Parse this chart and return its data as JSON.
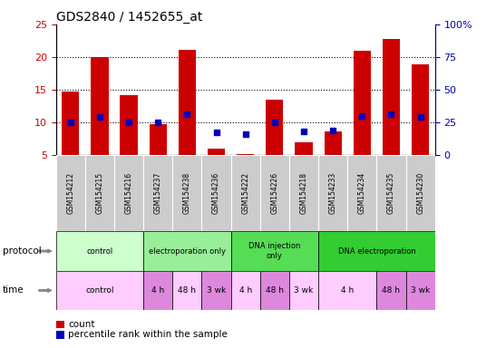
{
  "title": "GDS2840 / 1452655_at",
  "samples": [
    "GSM154212",
    "GSM154215",
    "GSM154216",
    "GSM154237",
    "GSM154238",
    "GSM154236",
    "GSM154222",
    "GSM154226",
    "GSM154218",
    "GSM154233",
    "GSM154234",
    "GSM154235",
    "GSM154230"
  ],
  "count": [
    14.7,
    20.0,
    14.1,
    9.7,
    21.1,
    6.0,
    5.1,
    13.5,
    6.9,
    8.6,
    21.0,
    22.8,
    18.9
  ],
  "percentile_pct": [
    25,
    29,
    25,
    25,
    31,
    17,
    16,
    25,
    18,
    19,
    30,
    31,
    29
  ],
  "ylim_left": [
    5,
    25
  ],
  "ylim_right": [
    0,
    100
  ],
  "y_ticks_left": [
    5,
    10,
    15,
    20,
    25
  ],
  "y_ticks_right": [
    0,
    25,
    50,
    75,
    100
  ],
  "bar_color": "#cc0000",
  "dot_color": "#0000bb",
  "title_fontsize": 10,
  "tick_color_left": "#cc0000",
  "tick_color_right": "#0000aa",
  "sample_bg": "#cccccc",
  "proto_groups": [
    {
      "label": "control",
      "start": 0,
      "end": 3,
      "color": "#ccffcc"
    },
    {
      "label": "electroporation only",
      "start": 3,
      "end": 6,
      "color": "#99ee99"
    },
    {
      "label": "DNA injection\nonly",
      "start": 6,
      "end": 9,
      "color": "#55dd55"
    },
    {
      "label": "DNA electroporation",
      "start": 9,
      "end": 13,
      "color": "#33cc33"
    }
  ],
  "time_groups": [
    {
      "label": "control",
      "start": 0,
      "end": 3,
      "color": "#ffccff"
    },
    {
      "label": "4 h",
      "start": 3,
      "end": 4,
      "color": "#dd88dd"
    },
    {
      "label": "48 h",
      "start": 4,
      "end": 5,
      "color": "#ffccff"
    },
    {
      "label": "3 wk",
      "start": 5,
      "end": 6,
      "color": "#dd88dd"
    },
    {
      "label": "4 h",
      "start": 6,
      "end": 7,
      "color": "#ffccff"
    },
    {
      "label": "48 h",
      "start": 7,
      "end": 8,
      "color": "#dd88dd"
    },
    {
      "label": "3 wk",
      "start": 8,
      "end": 9,
      "color": "#ffccff"
    },
    {
      "label": "4 h",
      "start": 9,
      "end": 11,
      "color": "#ffccff"
    },
    {
      "label": "48 h",
      "start": 11,
      "end": 12,
      "color": "#dd88dd"
    },
    {
      "label": "3 wk",
      "start": 12,
      "end": 13,
      "color": "#dd88dd"
    }
  ],
  "legend_items": [
    {
      "color": "#cc0000",
      "label": "count"
    },
    {
      "color": "#0000bb",
      "label": "percentile rank within the sample"
    }
  ]
}
